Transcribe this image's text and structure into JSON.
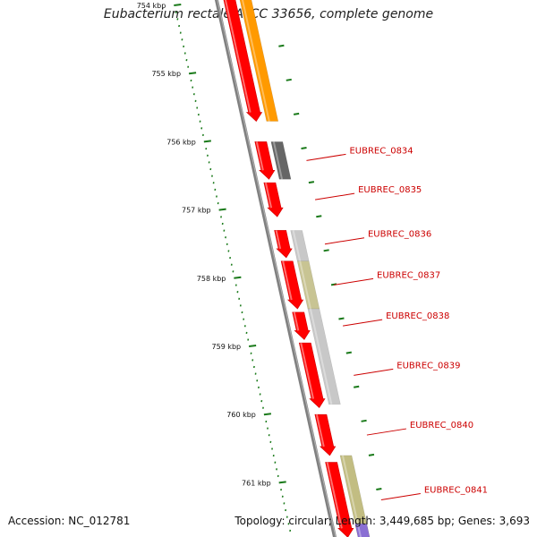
{
  "title": "Eubacterium rectale ATCC 33656, complete genome",
  "accession": "Accession: NC_012781",
  "topology": "Topology: circular; Length: 3,449,685 bp; Genes: 3,693",
  "ticks": [
    {
      "kbp": 754,
      "label": "754 kbp"
    },
    {
      "kbp": 755,
      "label": "755 kbp"
    },
    {
      "kbp": 756,
      "label": "756 kbp"
    },
    {
      "kbp": 757,
      "label": "757 kbp"
    },
    {
      "kbp": 758,
      "label": "758 kbp"
    },
    {
      "kbp": 759,
      "label": "759 kbp"
    },
    {
      "kbp": 760,
      "label": "760 kbp"
    },
    {
      "kbp": 761,
      "label": "761 kbp"
    }
  ],
  "genes": [
    {
      "label": "",
      "start": 753.7,
      "end": 755.7
    },
    {
      "label": "EUBREC_0834",
      "start": 756.0,
      "end": 756.55
    },
    {
      "label": "EUBREC_0835",
      "start": 756.6,
      "end": 757.1
    },
    {
      "label": "EUBREC_0836",
      "start": 757.3,
      "end": 757.7
    },
    {
      "label": "EUBREC_0837",
      "start": 757.75,
      "end": 758.45
    },
    {
      "label": "EUBREC_0838",
      "start": 758.5,
      "end": 758.9
    },
    {
      "label": "EUBREC_0839",
      "start": 758.95,
      "end": 759.9
    },
    {
      "label": "EUBREC_0840",
      "start": 760.0,
      "end": 760.6
    },
    {
      "label": "EUBREC_0841",
      "start": 760.7,
      "end": 761.8
    }
  ],
  "features": [
    {
      "track": 2,
      "start": 753.7,
      "end": 755.7,
      "color": "#ff9a00"
    },
    {
      "track": 2,
      "start": 756.0,
      "end": 756.55,
      "color": "#666666"
    },
    {
      "track": 2,
      "start": 757.3,
      "end": 757.75,
      "color": "#c8c8c8"
    },
    {
      "track": 2,
      "start": 757.75,
      "end": 758.45,
      "color": "#c8c493"
    },
    {
      "track": 2,
      "start": 758.45,
      "end": 759.85,
      "color": "#c8c8c8"
    },
    {
      "track": 2,
      "start": 760.6,
      "end": 761.8,
      "color": "#c2bd82"
    },
    {
      "track": 2,
      "start": 761.6,
      "end": 761.8,
      "color": "#8a6fd4"
    }
  ],
  "colors": {
    "gene": "#ff0000",
    "backbone": "#808080",
    "tick": "#1a7a1a",
    "label": "#cc0000"
  }
}
